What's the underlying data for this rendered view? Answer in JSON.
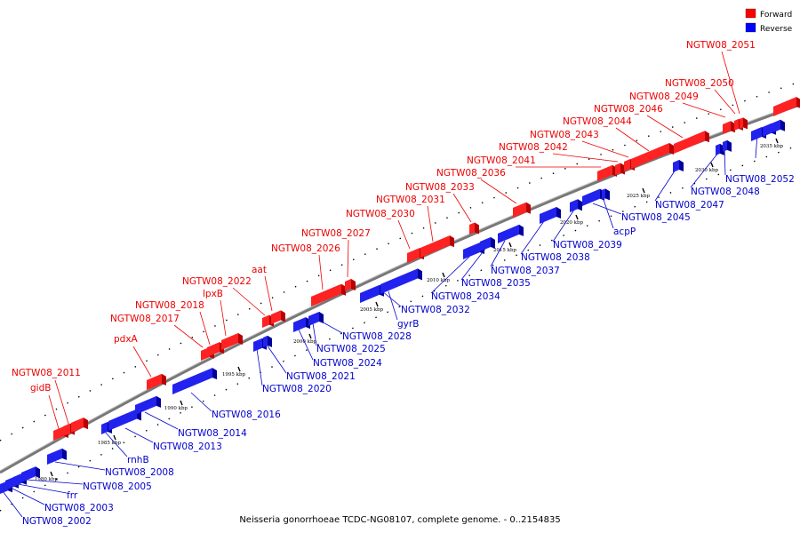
{
  "caption": "Neisseria gonorrhoeae TCDC-NG08107, complete genome. - 0..2154835",
  "legend": [
    {
      "label": "Forward",
      "color": "#ff0000"
    },
    {
      "label": "Reverse",
      "color": "#0000ff"
    }
  ],
  "colors": {
    "forward": "#ff2222",
    "reverse": "#2222ee",
    "forward_line": "#ee0000",
    "reverse_line": "#0000cc",
    "axis": "#888888"
  },
  "ticks": [
    "1980 kbp",
    "1985 kbp",
    "1990 kbp",
    "1995 kbp",
    "2000 kbp",
    "2005 kbp",
    "2010 kbp",
    "2015 kbp",
    "2020 kbp",
    "2025 kbp",
    "2030 kbp",
    "2035 kbp"
  ],
  "forward_labels": [
    "NGTW08_2011",
    "gidB",
    "pdxA",
    "NGTW08_2017",
    "NGTW08_2018",
    "lpxB",
    "NGTW08_2022",
    "aat",
    "NGTW08_2026",
    "NGTW08_2027",
    "NGTW08_2030",
    "NGTW08_2031",
    "NGTW08_2033",
    "NGTW08_2036",
    "NGTW08_2041",
    "NGTW08_2042",
    "NGTW08_2043",
    "NGTW08_2044",
    "NGTW08_2046",
    "NGTW08_2049",
    "NGTW08_2050",
    "NGTW08_2051"
  ],
  "reverse_labels": [
    "NGTW08_2002",
    "NGTW08_2003",
    "frr",
    "NGTW08_2005",
    "NGTW08_2008",
    "rnhB",
    "NGTW08_2013",
    "NGTW08_2014",
    "NGTW08_2016",
    "NGTW08_2020",
    "NGTW08_2021",
    "NGTW08_2024",
    "NGTW08_2025",
    "NGTW08_2028",
    "gyrB",
    "NGTW08_2032",
    "NGTW08_2034",
    "NGTW08_2035",
    "NGTW08_2037",
    "NGTW08_2038",
    "NGTW08_2039",
    "acpP",
    "NGTW08_2045",
    "NGTW08_2047",
    "NGTW08_2048",
    "NGTW08_2052"
  ]
}
